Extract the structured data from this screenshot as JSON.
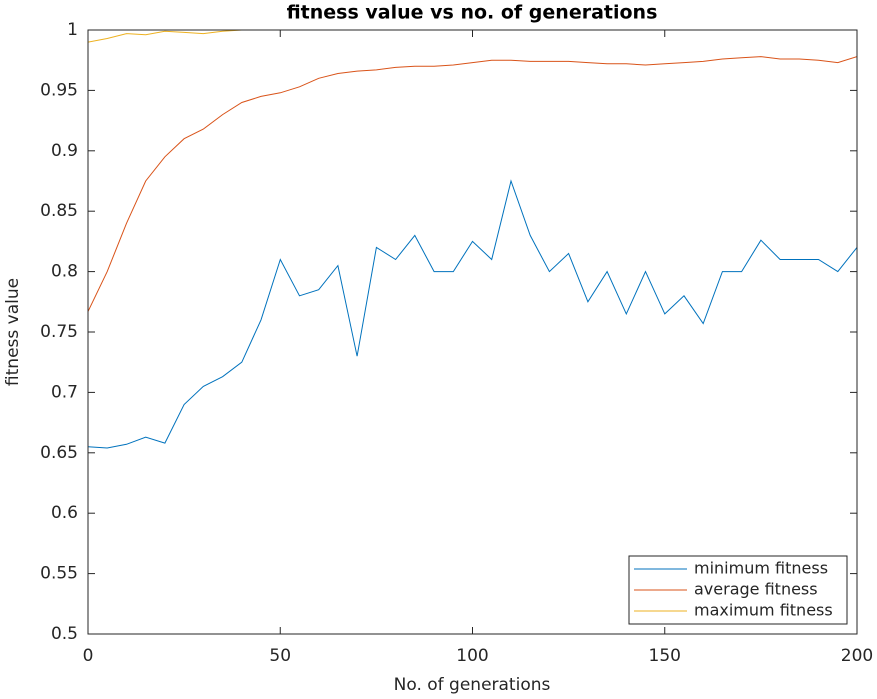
{
  "chart_data": {
    "type": "line",
    "title": "fitness value vs no. of generations",
    "x_label": "No. of generations",
    "y_label": "fitness value",
    "x": [
      0,
      5,
      10,
      15,
      20,
      25,
      30,
      35,
      40,
      45,
      50,
      55,
      60,
      65,
      70,
      75,
      80,
      85,
      90,
      95,
      100,
      105,
      110,
      115,
      120,
      125,
      130,
      135,
      140,
      145,
      150,
      155,
      160,
      165,
      170,
      175,
      180,
      185,
      190,
      195,
      200
    ],
    "series": [
      {
        "name": "minimum fitness",
        "color": "#0072BD",
        "values": [
          0.655,
          0.654,
          0.657,
          0.663,
          0.658,
          0.69,
          0.705,
          0.713,
          0.725,
          0.76,
          0.81,
          0.78,
          0.785,
          0.805,
          0.73,
          0.82,
          0.81,
          0.83,
          0.8,
          0.8,
          0.825,
          0.81,
          0.875,
          0.83,
          0.8,
          0.815,
          0.775,
          0.8,
          0.765,
          0.8,
          0.765,
          0.78,
          0.757,
          0.8,
          0.8,
          0.826,
          0.81,
          0.81,
          0.81,
          0.8,
          0.82
        ]
      },
      {
        "name": "average fitness",
        "color": "#D95319",
        "values": [
          0.767,
          0.8,
          0.84,
          0.875,
          0.895,
          0.91,
          0.918,
          0.93,
          0.94,
          0.945,
          0.948,
          0.953,
          0.96,
          0.964,
          0.966,
          0.967,
          0.969,
          0.97,
          0.97,
          0.971,
          0.973,
          0.975,
          0.975,
          0.974,
          0.974,
          0.974,
          0.973,
          0.972,
          0.972,
          0.971,
          0.972,
          0.973,
          0.974,
          0.976,
          0.977,
          0.978,
          0.976,
          0.976,
          0.975,
          0.973,
          0.978
        ]
      },
      {
        "name": "maximum fitness",
        "color": "#EDB120",
        "values": [
          0.99,
          0.993,
          0.997,
          0.996,
          0.999,
          0.998,
          0.997,
          0.999,
          1,
          1,
          1,
          1,
          1,
          1,
          1,
          1,
          1,
          1,
          1,
          1,
          1,
          1,
          1,
          1,
          1,
          1,
          1,
          1,
          1,
          1,
          1,
          1,
          1,
          1,
          1,
          1,
          1,
          1,
          1,
          1,
          1
        ]
      }
    ],
    "xlim": [
      0,
      200
    ],
    "xticks": [
      0,
      50,
      100,
      150,
      200
    ],
    "ylim": [
      0.5,
      1
    ],
    "yticks": [
      0.5,
      0.55,
      0.6,
      0.65,
      0.7,
      0.75,
      0.8,
      0.85,
      0.9,
      0.95,
      1
    ],
    "legend": "lower right"
  }
}
